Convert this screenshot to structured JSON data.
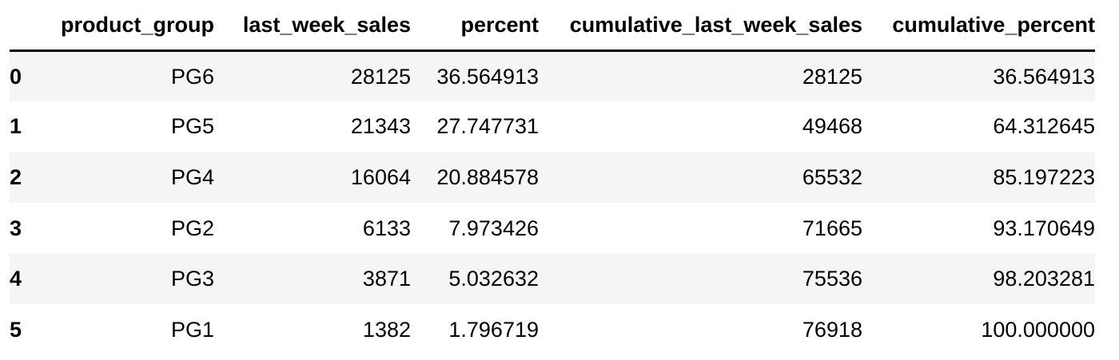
{
  "table": {
    "columns": [
      "",
      "product_group",
      "last_week_sales",
      "percent",
      "cumulative_last_week_sales",
      "cumulative_percent"
    ],
    "rows": [
      {
        "index": "0",
        "product_group": "PG6",
        "last_week_sales": "28125",
        "percent": "36.564913",
        "cumulative_last_week_sales": "28125",
        "cumulative_percent": "36.564913"
      },
      {
        "index": "1",
        "product_group": "PG5",
        "last_week_sales": "21343",
        "percent": "27.747731",
        "cumulative_last_week_sales": "49468",
        "cumulative_percent": "64.312645"
      },
      {
        "index": "2",
        "product_group": "PG4",
        "last_week_sales": "16064",
        "percent": "20.884578",
        "cumulative_last_week_sales": "65532",
        "cumulative_percent": "85.197223"
      },
      {
        "index": "3",
        "product_group": "PG2",
        "last_week_sales": "6133",
        "percent": "7.973426",
        "cumulative_last_week_sales": "71665",
        "cumulative_percent": "93.170649"
      },
      {
        "index": "4",
        "product_group": "PG3",
        "last_week_sales": "3871",
        "percent": "5.032632",
        "cumulative_last_week_sales": "75536",
        "cumulative_percent": "98.203281"
      },
      {
        "index": "5",
        "product_group": "PG1",
        "last_week_sales": "1382",
        "percent": "1.796719",
        "cumulative_last_week_sales": "76918",
        "cumulative_percent": "100.000000"
      }
    ]
  },
  "colors": {
    "odd_row": "#f5f5f5",
    "even_row": "#ffffff",
    "header_rule": "#000000",
    "text": "#000000"
  }
}
